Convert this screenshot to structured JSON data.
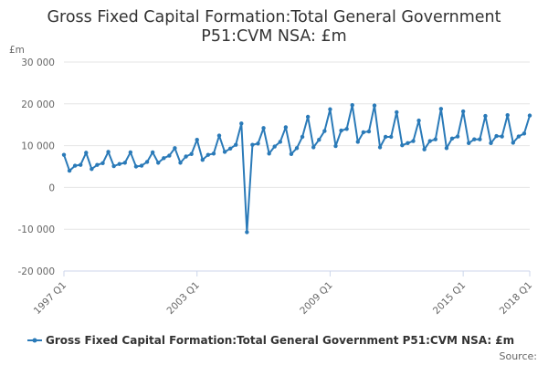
{
  "chart_data": {
    "type": "line",
    "title": "Gross Fixed Capital Formation:Total General Government P51:CVM NSA: £m",
    "title_lines": [
      "Gross Fixed Capital Formation:Total General Government",
      "P51:CVM NSA: £m"
    ],
    "ylabel": "£m",
    "xlabel": "",
    "ylim": [
      -20000,
      30000
    ],
    "yticks": [
      30000,
      20000,
      10000,
      0,
      -10000,
      -20000
    ],
    "ytick_labels": [
      "30 000",
      "20 000",
      "10 000",
      "0",
      "-10 000",
      "-20 000"
    ],
    "xtick_labels": [
      "1997 Q1",
      "2003 Q1",
      "2009 Q1",
      "2015 Q1",
      "2018 Q1"
    ],
    "xtick_indices": [
      0,
      24,
      48,
      72,
      84
    ],
    "grid": true,
    "legend_position": "bottom",
    "series": [
      {
        "name": "Gross Fixed Capital Formation:Total General Government P51:CVM NSA: £m",
        "color": "#2a7ab8",
        "start": "1997 Q1",
        "values": [
          7800,
          4000,
          5200,
          5400,
          8300,
          4400,
          5400,
          5800,
          8500,
          5100,
          5600,
          5900,
          8400,
          5000,
          5200,
          6100,
          8400,
          5900,
          7000,
          7600,
          9400,
          5900,
          7400,
          8000,
          11400,
          6600,
          7800,
          8100,
          12400,
          8500,
          9300,
          10200,
          15300,
          -10700,
          10200,
          10500,
          14200,
          8100,
          9800,
          10900,
          14400,
          8000,
          9400,
          12100,
          16900,
          9600,
          11400,
          13500,
          18700,
          9900,
          13600,
          14000,
          19700,
          10900,
          13200,
          13400,
          19600,
          9600,
          12100,
          12100,
          18000,
          10100,
          10600,
          11100,
          16000,
          9100,
          11100,
          11500,
          18800,
          9400,
          11700,
          12200,
          18200,
          10600,
          11500,
          11500,
          17100,
          10600,
          12300,
          12200,
          17300,
          10700,
          12200,
          12900,
          17200
        ]
      }
    ]
  },
  "legend": {
    "label": "Gross Fixed Capital Formation:Total General Government P51:CVM NSA: £m"
  },
  "footer": {
    "source_label": "Source:"
  }
}
